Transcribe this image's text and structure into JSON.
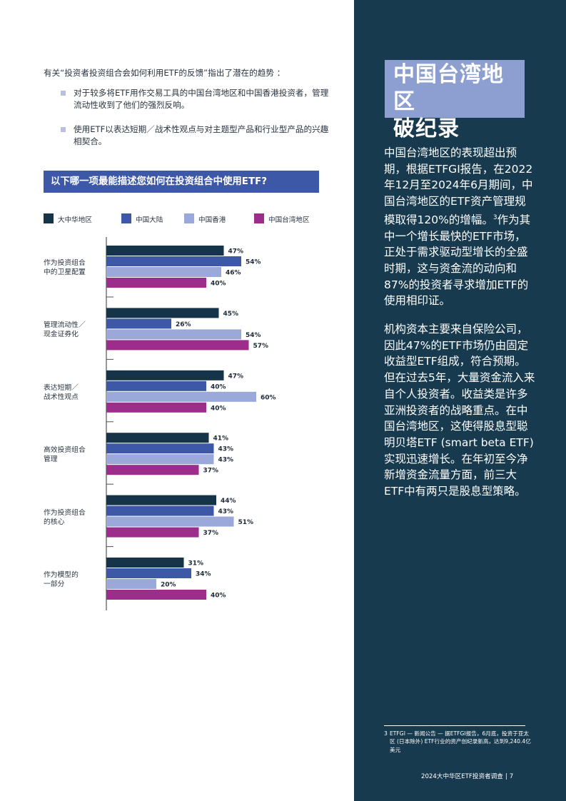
{
  "intro": "有关“投资者投资组合会如何利用ETF的反馈”指出了潜在的趋势 ：",
  "bullets": [
    "对于较多将ETF用作交易工具的中国台湾地区和中国香港投资者，管理流动性收到了他们的强烈反响。",
    "使用ETF以表达短期／战术性观点与对主题型产品和行业型产品的兴趣相契合。"
  ],
  "question": "以下哪一项最能描述您如何在投资组合中使用ETF?",
  "legend": [
    "大中华地区",
    "中国大陆",
    "中国香港",
    "中国台湾地区"
  ],
  "colors": {
    "series": [
      "#15344a",
      "#3d58a7",
      "#9aa8da",
      "#9c2d8b"
    ],
    "panel": "#173a4f",
    "title_box": "#8d9fd1"
  },
  "chart_data": {
    "type": "bar",
    "orientation": "horizontal",
    "categories": [
      [
        "作为投资组合",
        "中的卫星配置"
      ],
      [
        "管理流动性／",
        "现金证券化"
      ],
      [
        "表达短期／",
        "战术性观点"
      ],
      [
        "高效投资组合",
        "管理"
      ],
      [
        "作为投资组合",
        "的核心"
      ],
      [
        "作为模型的",
        "一部分"
      ]
    ],
    "series": [
      {
        "name": "大中华地区",
        "values": [
          47,
          45,
          47,
          41,
          44,
          31
        ]
      },
      {
        "name": "中国大陆",
        "values": [
          54,
          26,
          40,
          43,
          43,
          34
        ]
      },
      {
        "name": "中国香港",
        "values": [
          46,
          54,
          60,
          43,
          51,
          20
        ]
      },
      {
        "name": "中国台湾地区",
        "values": [
          40,
          57,
          40,
          37,
          37,
          40
        ]
      }
    ],
    "value_suffix": "%",
    "legend_position": "top"
  },
  "sidebar": {
    "title_lines": [
      "中国台湾地区",
      "破纪录"
    ],
    "paragraph1_pre": "中国台湾地区的表现超出预期，根据ETFGI报告，在2022年12月至2024年6月期间，中国台湾地区的ETF资产管理规模取得120%的增幅。",
    "paragraph1_sup": "3",
    "paragraph1_post": "作为其中一个增长最快的ETF市场，正处于需求驱动型增长的全盛时期，这与资金流的动向和87%的投资者寻求增加ETF的使用相印证。",
    "paragraph2": "机构资本主要来自保险公司，因此47%的ETF市场仍由固定收益型ETF组成，符合预期。但在过去5年，大量资金流入来自个人投资者。收益类是许多亚洲投资者的战略重点。在中国台湾地区，这使得股息型聪明贝塔ETF (smart beta ETF) 实现迅速增长。在年初至今净新增资金流量方面，前三大ETF中有两只是股息型策略。"
  },
  "footnote": {
    "number": "3",
    "text": "ETFGI — 新闻公告 — 据ETFGI报告，6月底，投资于亚太区 (日本除外) ETF行业的资产创纪录新高，达到9,240.4亿美元"
  },
  "footer": {
    "label": "2024大中华区ETF投资者调查",
    "separator": "|",
    "page": "7"
  }
}
